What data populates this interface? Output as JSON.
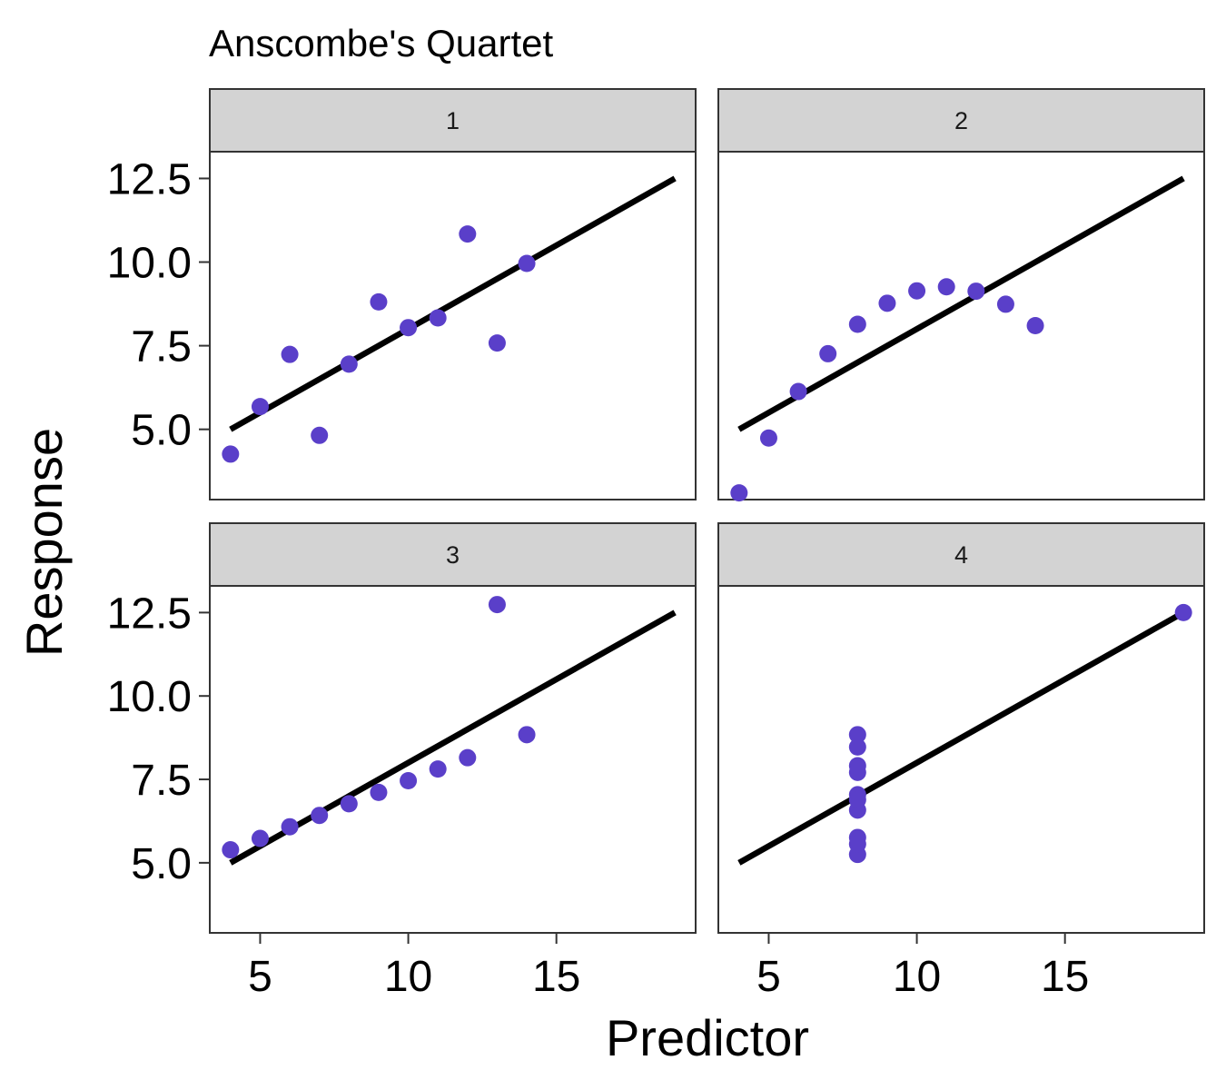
{
  "chart_data": {
    "type": "scatter",
    "title": "Anscombe's Quartet",
    "xlabel": "Predictor",
    "ylabel": "Response",
    "xlim": [
      3.3,
      19.7
    ],
    "ylim": [
      2.9,
      13.3
    ],
    "x_ticks": [
      5,
      10,
      15
    ],
    "y_ticks": [
      5.0,
      7.5,
      10.0,
      12.5
    ],
    "x_tick_labels": [
      "5",
      "10",
      "15"
    ],
    "y_tick_labels": [
      "5.0",
      "7.5",
      "10.0",
      "12.5"
    ],
    "grid": false,
    "point_color": "#5a3fc9",
    "line_color": "#000000",
    "strip_color": "#d3d3d3",
    "fit_line": {
      "intercept": 3.0,
      "slope": 0.5,
      "x_range": [
        4,
        19
      ]
    },
    "panels": [
      {
        "label": "1",
        "x": [
          10,
          8,
          13,
          9,
          11,
          14,
          6,
          4,
          12,
          7,
          5
        ],
        "y": [
          8.04,
          6.95,
          7.58,
          8.81,
          8.33,
          9.96,
          7.24,
          4.26,
          10.84,
          4.82,
          5.68
        ]
      },
      {
        "label": "2",
        "x": [
          10,
          8,
          13,
          9,
          11,
          14,
          6,
          4,
          12,
          7,
          5
        ],
        "y": [
          9.14,
          8.14,
          8.74,
          8.77,
          9.26,
          8.1,
          6.13,
          3.1,
          9.13,
          7.26,
          4.74
        ]
      },
      {
        "label": "3",
        "x": [
          10,
          8,
          13,
          9,
          11,
          14,
          6,
          4,
          12,
          7,
          5
        ],
        "y": [
          7.46,
          6.77,
          12.74,
          7.11,
          7.81,
          8.84,
          6.08,
          5.39,
          8.15,
          6.42,
          5.73
        ]
      },
      {
        "label": "4",
        "x": [
          8,
          8,
          8,
          8,
          8,
          8,
          8,
          19,
          8,
          8,
          8
        ],
        "y": [
          6.58,
          5.76,
          7.71,
          8.84,
          8.47,
          7.04,
          5.25,
          12.5,
          5.56,
          7.91,
          6.89
        ]
      }
    ]
  }
}
